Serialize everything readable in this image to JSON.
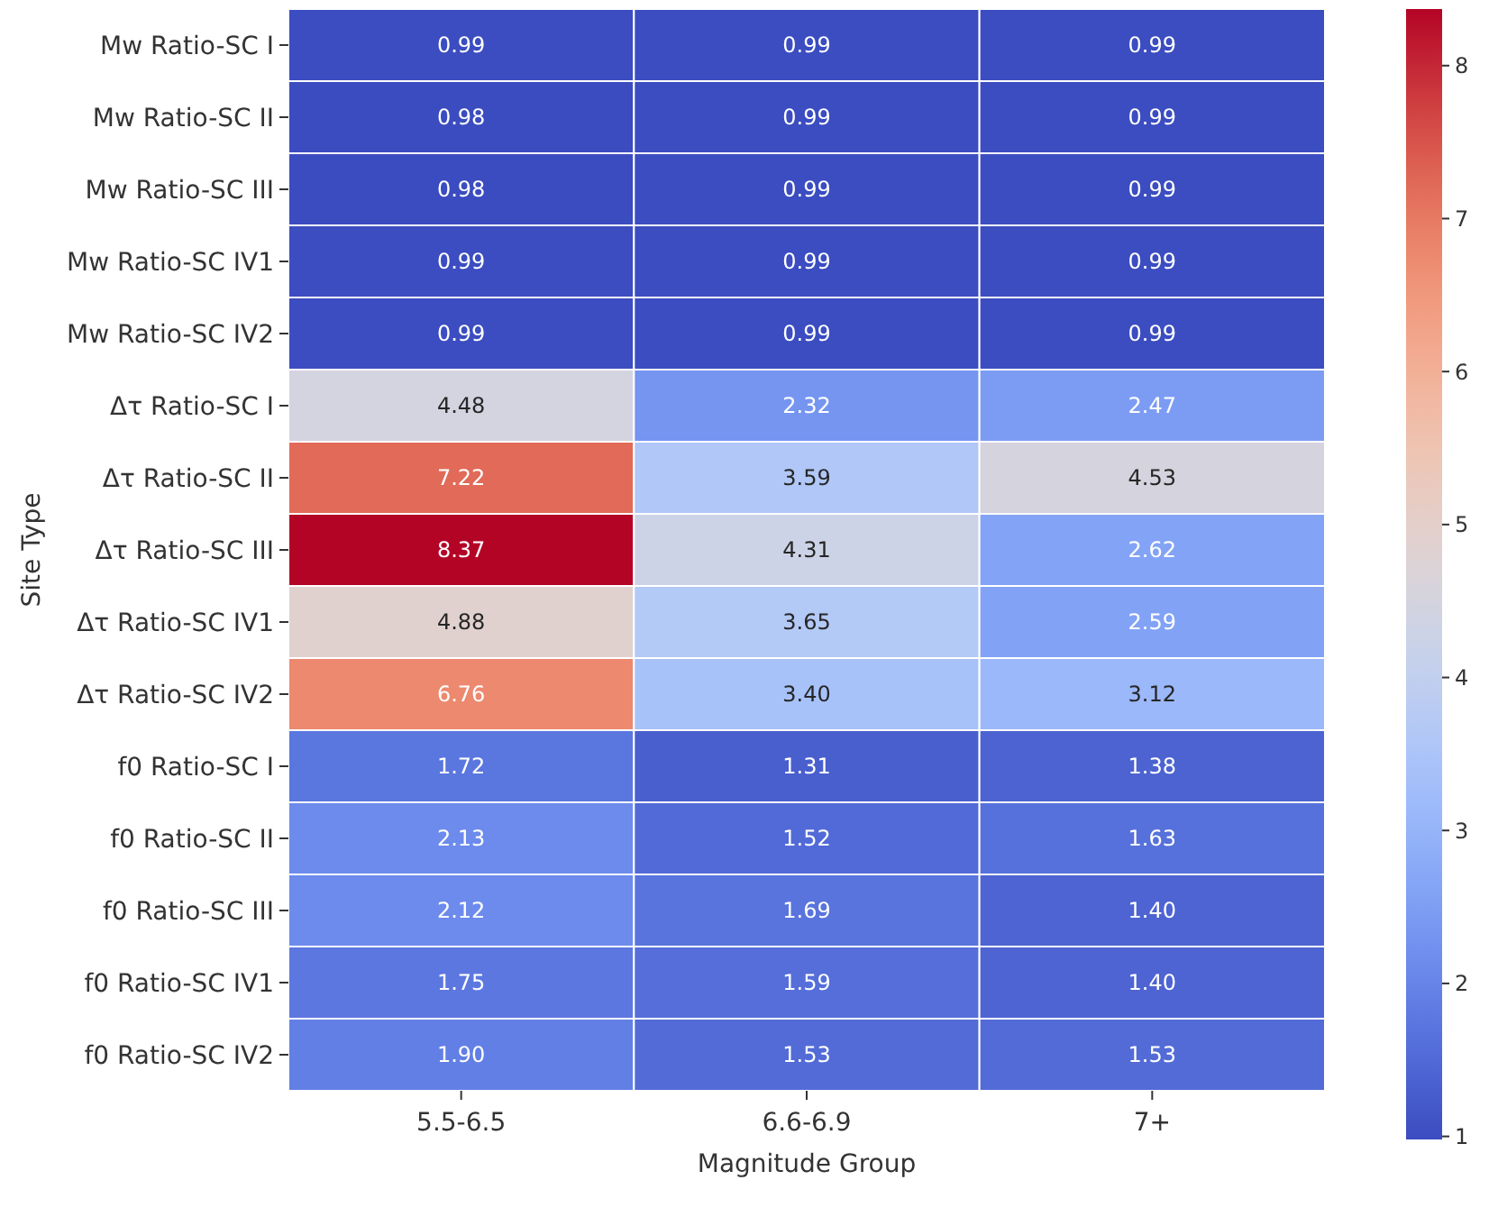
{
  "chart_data": {
    "type": "heatmap",
    "xlabel": "Magnitude Group",
    "ylabel": "Site Type",
    "categories": [
      "5.5-6.5",
      "6.6-6.9",
      "7+"
    ],
    "y_categories": [
      "Mw Ratio-SC I",
      "Mw Ratio-SC II",
      "Mw Ratio-SC III",
      "Mw Ratio-SC IV1",
      "Mw Ratio-SC IV2",
      "Δτ Ratio-SC I",
      "Δτ Ratio-SC II",
      "Δτ Ratio-SC III",
      "Δτ Ratio-SC IV1",
      "Δτ Ratio-SC IV2",
      "f0 Ratio-SC I",
      "f0 Ratio-SC II",
      "f0 Ratio-SC III",
      "f0 Ratio-SC IV1",
      "f0 Ratio-SC IV2"
    ],
    "cells": [
      [
        0.99,
        0.99,
        0.99
      ],
      [
        0.98,
        0.99,
        0.99
      ],
      [
        0.98,
        0.99,
        0.99
      ],
      [
        0.99,
        0.99,
        0.99
      ],
      [
        0.99,
        0.99,
        0.99
      ],
      [
        4.48,
        2.32,
        2.47
      ],
      [
        7.22,
        3.59,
        4.53
      ],
      [
        8.37,
        4.31,
        2.62
      ],
      [
        4.88,
        3.65,
        2.59
      ],
      [
        6.76,
        3.4,
        3.12
      ],
      [
        1.72,
        1.31,
        1.38
      ],
      [
        2.13,
        1.52,
        1.63
      ],
      [
        2.12,
        1.69,
        1.4
      ],
      [
        1.75,
        1.59,
        1.4
      ],
      [
        1.9,
        1.53,
        1.53
      ]
    ],
    "cell_labels": [
      [
        "0.99",
        "0.99",
        "0.99"
      ],
      [
        "0.98",
        "0.99",
        "0.99"
      ],
      [
        "0.98",
        "0.99",
        "0.99"
      ],
      [
        "0.99",
        "0.99",
        "0.99"
      ],
      [
        "0.99",
        "0.99",
        "0.99"
      ],
      [
        "4.48",
        "2.32",
        "2.47"
      ],
      [
        "7.22",
        "3.59",
        "4.53"
      ],
      [
        "8.37",
        "4.31",
        "2.62"
      ],
      [
        "4.88",
        "3.65",
        "2.59"
      ],
      [
        "6.76",
        "3.40",
        "3.12"
      ],
      [
        "1.72",
        "1.31",
        "1.38"
      ],
      [
        "2.13",
        "1.52",
        "1.63"
      ],
      [
        "2.12",
        "1.69",
        "1.40"
      ],
      [
        "1.75",
        "1.59",
        "1.40"
      ],
      [
        "1.90",
        "1.53",
        "1.53"
      ]
    ],
    "clim": [
      0.98,
      8.37
    ],
    "cticks": [
      1,
      2,
      3,
      4,
      5,
      6,
      7,
      8
    ]
  }
}
